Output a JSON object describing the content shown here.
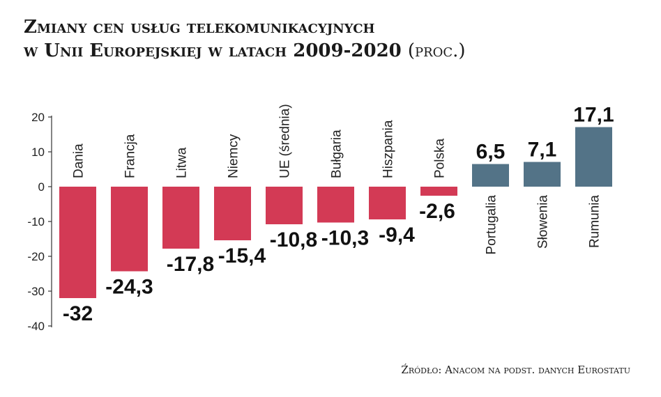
{
  "title": {
    "line1": "Zmiany cen usług telekomunikacyjnych",
    "line2": "w Unii Europejskiej w latach 2009-2020",
    "unit": "(proc.)"
  },
  "source": "Źródło: Anacom na podst. danych Eurostatu",
  "colors": {
    "negative": "#d33a55",
    "positive": "#537387",
    "axis": "#333333",
    "grid": "#bbbbbb"
  },
  "chart_data": {
    "type": "bar",
    "categories": [
      "Dania",
      "Francja",
      "Litwa",
      "Niemcy",
      "UE (średnia)",
      "Bułgaria",
      "Hiszpania",
      "Polska",
      "Portugalia",
      "Słowenia",
      "Rumunia"
    ],
    "values": [
      -32,
      -24.3,
      -17.8,
      -15.4,
      -10.8,
      -10.3,
      -9.4,
      -2.6,
      6.5,
      7.1,
      17.1
    ],
    "value_labels": [
      "-32",
      "-24,3",
      "-17,8",
      "-15,4",
      "-10,8",
      "-10,3",
      "-9,4",
      "-2,6",
      "6,5",
      "7,1",
      "17,1"
    ],
    "y_ticks": [
      "20",
      "10",
      "0",
      "-10",
      "-20",
      "-30",
      "-40"
    ],
    "ylim": [
      -40,
      20
    ],
    "grid": false,
    "legend": "none"
  }
}
